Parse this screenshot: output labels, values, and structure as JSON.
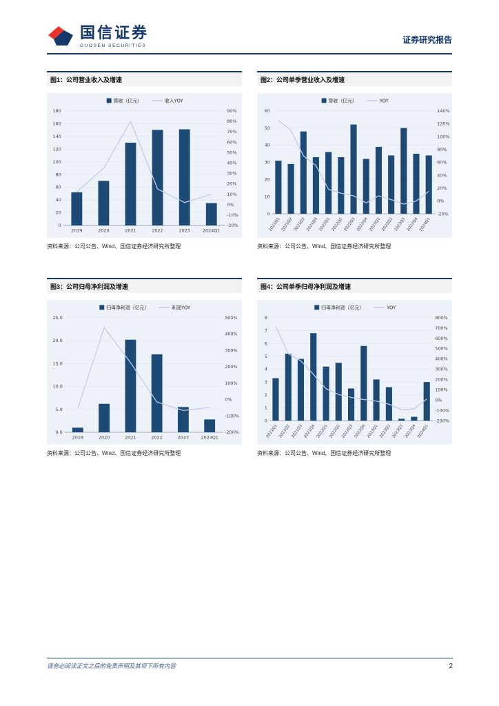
{
  "header": {
    "brand_cn": "国信证券",
    "brand_en": "GUOSEN SECURITIES",
    "report_type": "证券研究报告"
  },
  "footer": {
    "disclaimer": "请务必阅读正文之后的免责声明及其项下所有内容",
    "page_number": "2"
  },
  "colors": {
    "navy": "#1c4a75",
    "line": "#c3cbe8",
    "chart_bg": "#edf1f8",
    "grid": "#dde3ef",
    "axis_text": "#444444",
    "brand_navy": "#14386a",
    "brand_red": "#e8332a"
  },
  "chart_data": [
    {
      "figure_label": "图1：公司营业收入及增速",
      "type": "bar",
      "categories": [
        "2019",
        "2020",
        "2021",
        "2022",
        "2023",
        "2024Q1"
      ],
      "series": [
        {
          "name": "营收（亿元）",
          "type": "bar",
          "axis": "left",
          "values": [
            52,
            70,
            130,
            150,
            151,
            35
          ]
        },
        {
          "name": "收入YOY",
          "type": "line",
          "axis": "right",
          "values": [
            12,
            35,
            80,
            15,
            2,
            10
          ]
        }
      ],
      "left_axis": {
        "min": 0,
        "max": 180,
        "step": 20,
        "decimals": 0,
        "label_width": 20
      },
      "right_axis": {
        "min": -20,
        "max": 90,
        "step": 10,
        "suffix": "%",
        "label_width": 21
      },
      "rotate_labels": false,
      "legend_position": "top",
      "grid": true,
      "source": "资料来源：公司公告、Wind、国信证券经济研究所整理"
    },
    {
      "figure_label": "图2：公司单季营业收入及增速",
      "type": "bar",
      "categories": [
        "2021Q1",
        "2021Q2",
        "2021Q3",
        "2021Q4",
        "2022Q1",
        "2022Q2",
        "2022Q3",
        "2022Q4",
        "2023Q1",
        "2023Q2",
        "2023Q3",
        "2023Q4",
        "2024Q1"
      ],
      "series": [
        {
          "name": "营收（亿元）",
          "type": "bar",
          "axis": "left",
          "values": [
            31,
            29,
            48,
            33,
            36,
            33,
            52,
            32,
            39,
            34,
            50,
            35,
            34
          ]
        },
        {
          "name": "YOY",
          "type": "line",
          "axis": "right",
          "values": [
            125,
            110,
            70,
            55,
            18,
            12,
            8,
            -3,
            8,
            2,
            -5,
            0,
            15
          ]
        }
      ],
      "left_axis": {
        "min": 0,
        "max": 60,
        "step": 10,
        "decimals": 0,
        "label_width": 18
      },
      "right_axis": {
        "min": -20,
        "max": 140,
        "step": 20,
        "suffix": "%",
        "label_width": 21
      },
      "rotate_labels": true,
      "legend_position": "top",
      "grid": true,
      "source": "资料来源：公司公告、Wind、国信证券经济研究所整理"
    },
    {
      "figure_label": "图3：公司归母净利润及增速",
      "type": "bar",
      "categories": [
        "2019",
        "2020",
        "2021",
        "2022",
        "2023",
        "2024Q1"
      ],
      "series": [
        {
          "name": "归母净利润（亿元）",
          "type": "bar",
          "axis": "left",
          "values": [
            1.0,
            6.2,
            20.2,
            17.0,
            5.5,
            2.8
          ]
        },
        {
          "name": "利润YOY",
          "type": "line",
          "axis": "right",
          "values": [
            -55,
            440,
            225,
            -15,
            -67,
            -48
          ]
        }
      ],
      "left_axis": {
        "min": 0,
        "max": 25,
        "step": 5,
        "decimals": 1,
        "label_width": 22
      },
      "right_axis": {
        "min": -200,
        "max": 500,
        "step": 100,
        "suffix": "%",
        "label_width": 24
      },
      "rotate_labels": false,
      "legend_position": "top",
      "grid": true,
      "source": "资料来源：公司公告、Wind、国信证券经济研究所整理"
    },
    {
      "figure_label": "图4：公司单季归母净利润及增速",
      "type": "bar",
      "categories": [
        "2021Q1",
        "2021Q2",
        "2021Q3",
        "2021Q4",
        "2022Q1",
        "2022Q2",
        "2022Q3",
        "2022Q4",
        "2023Q1",
        "2023Q2",
        "2023Q3",
        "2023Q4",
        "2024Q1"
      ],
      "series": [
        {
          "name": "归母净利润（亿元）",
          "type": "bar",
          "axis": "left",
          "values": [
            3.3,
            5.2,
            4.8,
            6.8,
            4.2,
            4.5,
            2.5,
            5.8,
            3.2,
            2.6,
            0.15,
            0.3,
            3.0
          ]
        },
        {
          "name": "YOY",
          "type": "line",
          "axis": "right",
          "values": [
            720,
            450,
            380,
            250,
            110,
            55,
            25,
            5,
            -10,
            -40,
            -95,
            -85,
            10
          ]
        }
      ],
      "left_axis": {
        "min": 0,
        "max": 8,
        "step": 1,
        "decimals": 0,
        "label_width": 14
      },
      "right_axis": {
        "min": -200,
        "max": 800,
        "step": 100,
        "suffix": "%",
        "label_width": 24
      },
      "rotate_labels": true,
      "legend_position": "top",
      "grid": true,
      "source": "资料来源：公司公告、Wind、国信证券经济研究所整理"
    }
  ]
}
